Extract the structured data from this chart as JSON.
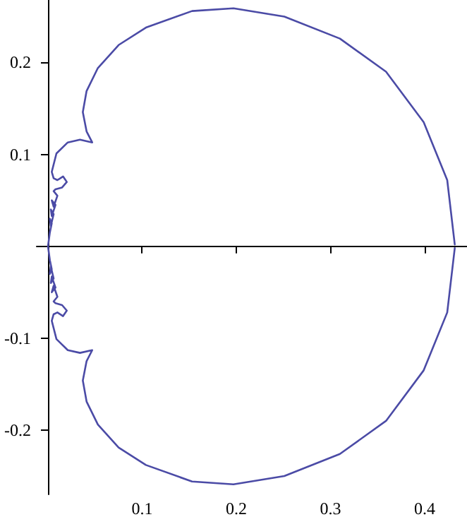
{
  "chart_data": {
    "type": "line",
    "grid": false,
    "marker": "none",
    "line_style": "solid",
    "xlim": [
      -0.012,
      0.445
    ],
    "ylim": [
      -0.27,
      0.268
    ],
    "xticks": [
      0.1,
      0.2,
      0.3,
      0.4
    ],
    "yticks": [
      -0.2,
      -0.1,
      0.1,
      0.2
    ],
    "series": [
      {
        "color": "#4b4ba6",
        "x": [
          0.432,
          0.424,
          0.399,
          0.359,
          0.31,
          0.251,
          0.197,
          0.153,
          0.104,
          0.075,
          0.053,
          0.041,
          0.037,
          0.041,
          0.047,
          0.034,
          0.021,
          0.009,
          0.004,
          0.006,
          0.01,
          0.016,
          0.02,
          0.015,
          0.008,
          0.006,
          0.01,
          0.006,
          0.004,
          0.008,
          0.004,
          0.003,
          0.006,
          0.003,
          0.002,
          0.004,
          0.002,
          0,
          0.002,
          0.004,
          0.002,
          0.003,
          0.006,
          0.003,
          0.004,
          0.008,
          0.004,
          0.006,
          0.01,
          0.006,
          0.008,
          0.015,
          0.02,
          0.016,
          0.01,
          0.006,
          0.004,
          0.009,
          0.021,
          0.034,
          0.047,
          0.041,
          0.037,
          0.041,
          0.053,
          0.075,
          0.104,
          0.153,
          0.197,
          0.251,
          0.31,
          0.359,
          0.399,
          0.424,
          0.432
        ],
        "values": [
          0.002,
          0.072,
          0.135,
          0.19,
          0.226,
          0.25,
          0.259,
          0.256,
          0.238,
          0.219,
          0.194,
          0.169,
          0.146,
          0.125,
          0.113,
          0.116,
          0.113,
          0.101,
          0.081,
          0.074,
          0.072,
          0.076,
          0.07,
          0.064,
          0.062,
          0.06,
          0.055,
          0.043,
          0.05,
          0.045,
          0.033,
          0.04,
          0.035,
          0.022,
          0.03,
          0.025,
          0.015,
          0,
          -0.015,
          -0.025,
          -0.03,
          -0.022,
          -0.035,
          -0.04,
          -0.033,
          -0.045,
          -0.05,
          -0.043,
          -0.055,
          -0.06,
          -0.062,
          -0.064,
          -0.07,
          -0.076,
          -0.072,
          -0.074,
          -0.081,
          -0.101,
          -0.113,
          -0.116,
          -0.113,
          -0.125,
          -0.146,
          -0.169,
          -0.194,
          -0.219,
          -0.238,
          -0.256,
          -0.259,
          -0.25,
          -0.226,
          -0.19,
          -0.135,
          -0.072,
          -0.002
        ]
      }
    ]
  }
}
